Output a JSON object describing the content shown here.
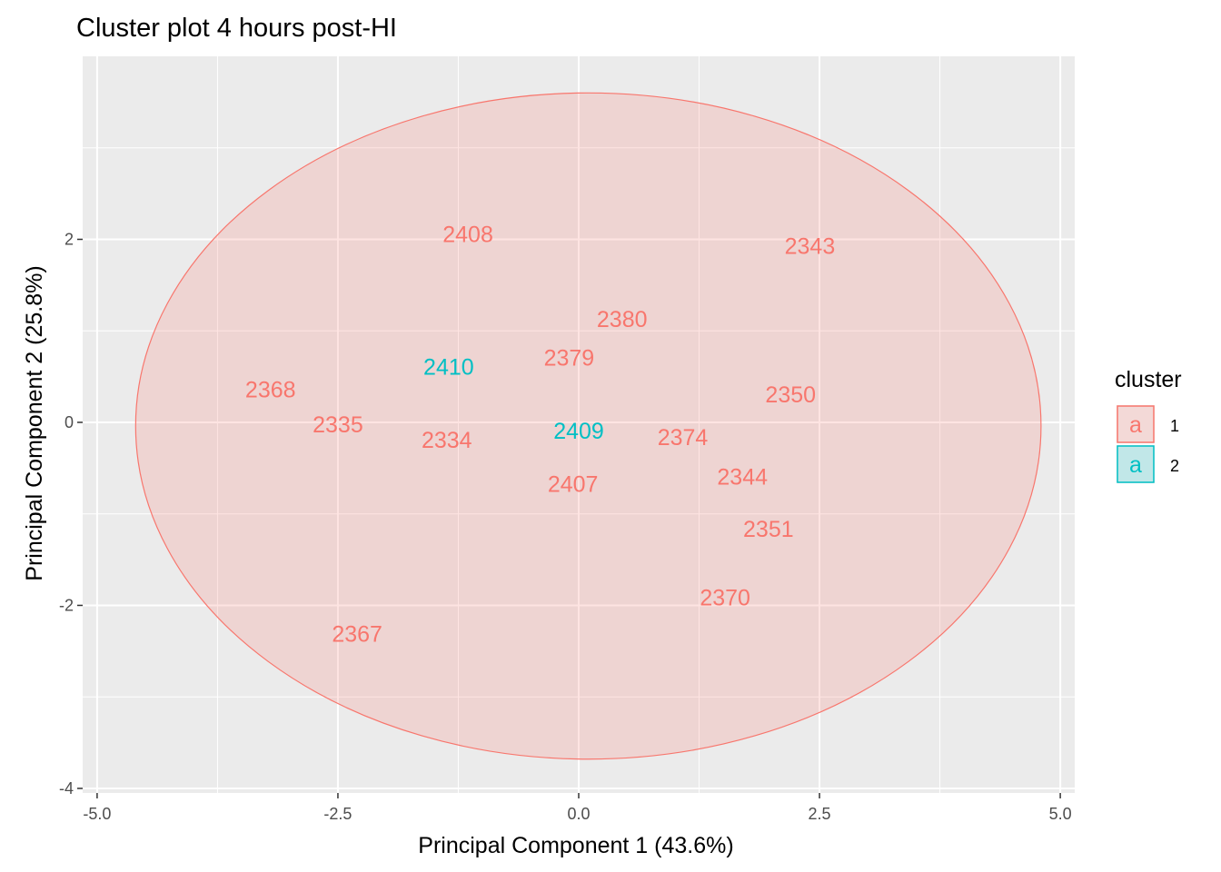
{
  "chart_data": {
    "type": "scatter",
    "title": "Cluster plot 4 hours post-HI",
    "xlabel": "Principal Component 1 (43.6%)",
    "ylabel": "Principal Component 2 (25.8%)",
    "xlim": [
      -5.15,
      5.15
    ],
    "ylim": [
      -4.05,
      4.0
    ],
    "x_ticks": [
      -5.0,
      -2.5,
      0.0,
      2.5,
      5.0
    ],
    "x_tick_labels": [
      "-5.0",
      "-2.5",
      "0.0",
      "2.5",
      "5.0"
    ],
    "y_ticks": [
      -4,
      -2,
      0,
      2
    ],
    "y_tick_labels": [
      "-4",
      "-2",
      "0",
      "2"
    ],
    "grid": true,
    "legend_placement": "right",
    "legend": {
      "title": "cluster",
      "key_glyph": "a",
      "entries": [
        "1",
        "2"
      ]
    },
    "cluster_colors": {
      "1": "#F8766D",
      "2": "#00BFC4"
    },
    "ellipse": {
      "cluster": "1",
      "center": [
        0.1,
        -0.04
      ],
      "radius_x": 4.7,
      "radius_y": 3.64,
      "fill": "#F8766D",
      "fill_opacity": 0.2
    },
    "points": [
      {
        "label": "2408",
        "x": -1.15,
        "y": 2.05,
        "cluster": "1"
      },
      {
        "label": "2343",
        "x": 2.4,
        "y": 1.92,
        "cluster": "1"
      },
      {
        "label": "2380",
        "x": 0.45,
        "y": 1.12,
        "cluster": "1"
      },
      {
        "label": "2379",
        "x": -0.1,
        "y": 0.7,
        "cluster": "1"
      },
      {
        "label": "2410",
        "x": -1.35,
        "y": 0.6,
        "cluster": "2"
      },
      {
        "label": "2368",
        "x": -3.2,
        "y": 0.35,
        "cluster": "1"
      },
      {
        "label": "2350",
        "x": 2.2,
        "y": 0.3,
        "cluster": "1"
      },
      {
        "label": "2335",
        "x": -2.5,
        "y": -0.03,
        "cluster": "1"
      },
      {
        "label": "2409",
        "x": 0.0,
        "y": -0.1,
        "cluster": "2"
      },
      {
        "label": "2374",
        "x": 1.08,
        "y": -0.17,
        "cluster": "1"
      },
      {
        "label": "2334",
        "x": -1.37,
        "y": -0.2,
        "cluster": "1"
      },
      {
        "label": "2344",
        "x": 1.7,
        "y": -0.6,
        "cluster": "1"
      },
      {
        "label": "2407",
        "x": -0.06,
        "y": -0.68,
        "cluster": "1"
      },
      {
        "label": "2351",
        "x": 1.97,
        "y": -1.17,
        "cluster": "1"
      },
      {
        "label": "2370",
        "x": 1.52,
        "y": -1.92,
        "cluster": "1"
      },
      {
        "label": "2367",
        "x": -2.3,
        "y": -2.32,
        "cluster": "1"
      }
    ]
  }
}
